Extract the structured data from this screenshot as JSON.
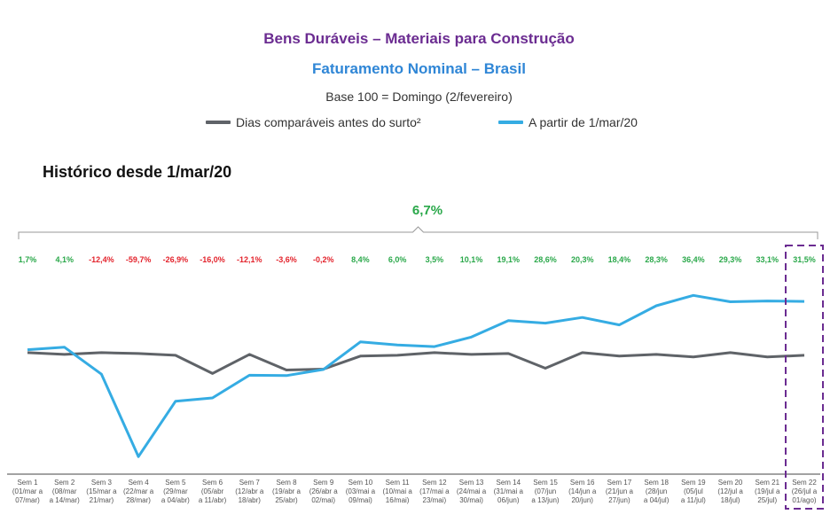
{
  "header": {
    "title": "Bens Duráveis – Materiais para Construção",
    "subtitle": "Faturamento Nominal – Brasil",
    "base_note": "Base 100 = Domingo (2/fevereiro)",
    "section_title": "Histórico desde 1/mar/20",
    "total_change": "6,7%"
  },
  "colors": {
    "title": "#6b2c91",
    "subtitle": "#2f86d6",
    "series_comparable": "#5f6368",
    "series_from_march": "#35ace3",
    "positive": "#2aa84a",
    "negative": "#e3232c",
    "highlight_box": "#6b2c91"
  },
  "legend": {
    "items": [
      {
        "label": "Dias comparáveis antes do surto²",
        "color": "#5f6368"
      },
      {
        "label": "A partir de 1/mar/20",
        "color": "#35ace3"
      }
    ]
  },
  "chart_data": {
    "type": "line",
    "categories": [
      "Sem 1 (01/mar a 07/mar)",
      "Sem 2 (08/mar a 14/mar)",
      "Sem 3 (15/mar a 21/mar)",
      "Sem 4 (22/mar a 28/mar)",
      "Sem 5 (29/mar a 04/abr)",
      "Sem 6 (05/abr a 11/abr)",
      "Sem 7 (12/abr a 18/abr)",
      "Sem 8 (19/abr a 25/abr)",
      "Sem 9 (26/abr a 02/mai)",
      "Sem 10 (03/mai a 09/mai)",
      "Sem 11 (10/mai a 16/mai)",
      "Sem 12 (17/mai a 23/mai)",
      "Sem 13 (24/mai a 30/mai)",
      "Sem 14 (31/mai a 06/jun)",
      "Sem 15 (07/jun a 13/jun)",
      "Sem 16 (14/jun a 20/jun)",
      "Sem 17 (21/jun a 27/jun)",
      "Sem 18 (28/jun a 04/jul)",
      "Sem 19 (05/jul a 11/jul)",
      "Sem 20 (12/jul a 18/jul)",
      "Sem 21 (19/jul a 25/jul)",
      "Sem 22 (26/jul a 01/ago)"
    ],
    "tick_lines": [
      [
        "Sem 1",
        "(01/mar a",
        "07/mar)"
      ],
      [
        "Sem 2",
        "(08/mar",
        "a 14/mar)"
      ],
      [
        "Sem 3",
        "(15/mar a",
        "21/mar)"
      ],
      [
        "Sem 4",
        "(22/mar a",
        "28/mar)"
      ],
      [
        "Sem 5",
        "(29/mar",
        "a 04/abr)"
      ],
      [
        "Sem 6",
        "(05/abr",
        "a 11/abr)"
      ],
      [
        "Sem 7",
        "(12/abr a",
        "18/abr)"
      ],
      [
        "Sem 8",
        "(19/abr a",
        "25/abr)"
      ],
      [
        "Sem 9",
        "(26/abr a",
        "02/mai)"
      ],
      [
        "Sem 10",
        "(03/mai a",
        "09/mai)"
      ],
      [
        "Sem 11",
        "(10/mai a",
        "16/mai)"
      ],
      [
        "Sem 12",
        "(17/mai a",
        "23/mai)"
      ],
      [
        "Sem 13",
        "(24/mai a",
        "30/mai)"
      ],
      [
        "Sem 14",
        "(31/mai a",
        "06/jun)"
      ],
      [
        "Sem 15",
        "(07/jun",
        "a 13/jun)"
      ],
      [
        "Sem 16",
        "(14/jun a",
        "20/jun)"
      ],
      [
        "Sem 17",
        "(21/jun a",
        "27/jun)"
      ],
      [
        "Sem 18",
        "(28/jun",
        "a 04/jul)"
      ],
      [
        "Sem 19",
        "(05/jul",
        "a 11/jul)"
      ],
      [
        "Sem 20",
        "(12/jul a",
        "18/jul)"
      ],
      [
        "Sem 21",
        "(19/jul a",
        "25/jul)"
      ],
      [
        "Sem 22",
        "(26/jul a",
        "01/ago)"
      ]
    ],
    "change_labels": [
      "1,7%",
      "4,1%",
      "-12,4%",
      "-59,7%",
      "-26,9%",
      "-16,0%",
      "-12,1%",
      "-3,6%",
      "-0,2%",
      "8,4%",
      "6,0%",
      "3,5%",
      "10,1%",
      "19,1%",
      "28,6%",
      "20,3%",
      "18,4%",
      "28,3%",
      "36,4%",
      "29,3%",
      "33,1%",
      "31,5%"
    ],
    "change_values": [
      1.7,
      4.1,
      -12.4,
      -59.7,
      -26.9,
      -16.0,
      -12.1,
      -3.6,
      -0.2,
      8.4,
      6.0,
      3.5,
      10.1,
      19.1,
      28.6,
      20.3,
      18.4,
      28.3,
      36.4,
      29.3,
      33.1,
      31.5
    ],
    "series": [
      {
        "name": "Dias comparáveis antes do surto²",
        "values": [
          100,
          99,
          100,
          99.5,
          98.5,
          88,
          99,
          90,
          90.5,
          98,
          98.5,
          100,
          99,
          99.5,
          91,
          100,
          98,
          99,
          97.5,
          100,
          97.5,
          98.5
        ]
      },
      {
        "name": "A partir de 1/mar/20",
        "values": [
          101.7,
          103.1,
          87.6,
          40.1,
          72,
          73.9,
          87,
          86.8,
          90.3,
          106.2,
          104.4,
          103.5,
          109,
          118.5,
          117,
          120.3,
          116,
          127,
          133,
          129.3,
          129.8,
          129.5
        ]
      }
    ],
    "ylim": [
      30,
      150
    ],
    "highlight_index": 21,
    "grid": false
  }
}
